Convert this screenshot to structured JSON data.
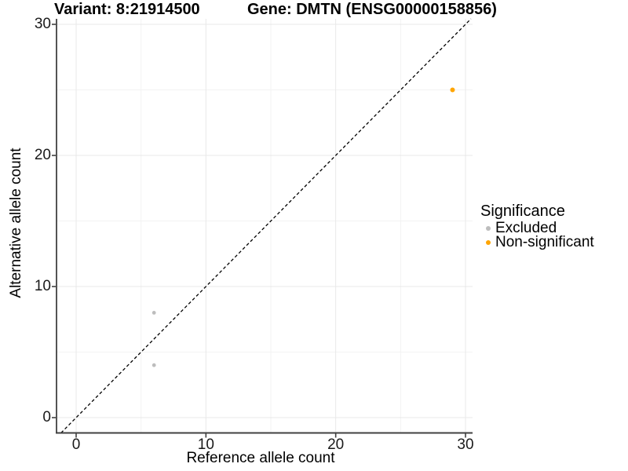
{
  "chart_data": {
    "type": "scatter",
    "titles": {
      "left": "Variant: 8:21914500",
      "right": "Gene: DMTN (ENSG00000158856)"
    },
    "xlabel": "Reference allele count",
    "ylabel": "Alternative allele count",
    "xlim": [
      0,
      30
    ],
    "ylim": [
      0,
      30
    ],
    "x_ticks": [
      0,
      10,
      20,
      30
    ],
    "y_ticks": [
      0,
      10,
      20,
      30
    ],
    "x_minor_ticks": [
      5,
      15,
      25
    ],
    "y_minor_ticks": [
      5,
      15,
      25
    ],
    "grid": true,
    "identity_line": {
      "slope": 1,
      "intercept": 0,
      "style": "dashed",
      "color": "#000000"
    },
    "legend": {
      "title": "Significance",
      "position": "right"
    },
    "series": [
      {
        "name": "Excluded",
        "color": "#bdbdbd",
        "point_radius": 2.4,
        "points": [
          [
            6,
            8
          ],
          [
            6,
            4
          ]
        ]
      },
      {
        "name": "Non-significant",
        "color": "#FFA500",
        "point_radius": 3,
        "points": [
          [
            29,
            25
          ]
        ]
      }
    ]
  }
}
